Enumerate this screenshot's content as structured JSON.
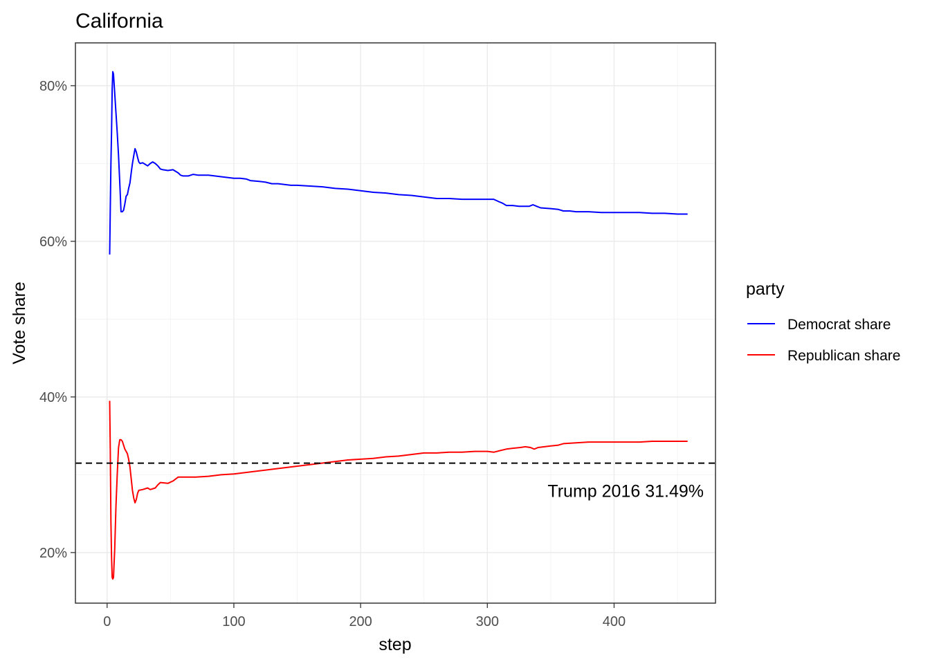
{
  "chart_data": {
    "type": "line",
    "title": "California",
    "xlabel": "step",
    "ylabel": "Vote share",
    "xlim": [
      -25,
      480
    ],
    "ylim": [
      0.135,
      0.855
    ],
    "x_ticks": [
      0,
      100,
      200,
      300,
      400
    ],
    "x_tick_labels": [
      "0",
      "100",
      "200",
      "300",
      "400"
    ],
    "y_ticks": [
      0.2,
      0.4,
      0.6,
      0.8
    ],
    "y_tick_labels": [
      "20%",
      "40%",
      "60%",
      "80%"
    ],
    "grid": true,
    "legend": {
      "title": "party",
      "position": "right"
    },
    "series": [
      {
        "name": "Democrat share",
        "color": "#0000ff",
        "points": [
          [
            2,
            0.583
          ],
          [
            2.5,
            0.643
          ],
          [
            3,
            0.7
          ],
          [
            3.5,
            0.74
          ],
          [
            4,
            0.795
          ],
          [
            4.5,
            0.818
          ],
          [
            5,
            0.815
          ],
          [
            6,
            0.79
          ],
          [
            7,
            0.765
          ],
          [
            8,
            0.74
          ],
          [
            9,
            0.71
          ],
          [
            10,
            0.675
          ],
          [
            11,
            0.638
          ],
          [
            12,
            0.638
          ],
          [
            13,
            0.64
          ],
          [
            14,
            0.648
          ],
          [
            15,
            0.658
          ],
          [
            16,
            0.66
          ],
          [
            17,
            0.668
          ],
          [
            18,
            0.675
          ],
          [
            19,
            0.688
          ],
          [
            20,
            0.7
          ],
          [
            21,
            0.71
          ],
          [
            22,
            0.719
          ],
          [
            23,
            0.715
          ],
          [
            24,
            0.708
          ],
          [
            25,
            0.702
          ],
          [
            26,
            0.7
          ],
          [
            28,
            0.701
          ],
          [
            30,
            0.699
          ],
          [
            32,
            0.697
          ],
          [
            34,
            0.7
          ],
          [
            36,
            0.702
          ],
          [
            38,
            0.7
          ],
          [
            40,
            0.697
          ],
          [
            42,
            0.693
          ],
          [
            44,
            0.692
          ],
          [
            48,
            0.691
          ],
          [
            52,
            0.692
          ],
          [
            54,
            0.69
          ],
          [
            56,
            0.688
          ],
          [
            58,
            0.685
          ],
          [
            60,
            0.684
          ],
          [
            64,
            0.684
          ],
          [
            68,
            0.686
          ],
          [
            72,
            0.685
          ],
          [
            80,
            0.685
          ],
          [
            85,
            0.684
          ],
          [
            90,
            0.683
          ],
          [
            95,
            0.682
          ],
          [
            100,
            0.681
          ],
          [
            105,
            0.681
          ],
          [
            110,
            0.68
          ],
          [
            113,
            0.678
          ],
          [
            120,
            0.677
          ],
          [
            125,
            0.676
          ],
          [
            130,
            0.674
          ],
          [
            135,
            0.674
          ],
          [
            140,
            0.673
          ],
          [
            145,
            0.672
          ],
          [
            150,
            0.672
          ],
          [
            160,
            0.671
          ],
          [
            170,
            0.67
          ],
          [
            175,
            0.669
          ],
          [
            180,
            0.668
          ],
          [
            190,
            0.667
          ],
          [
            200,
            0.665
          ],
          [
            210,
            0.663
          ],
          [
            220,
            0.662
          ],
          [
            230,
            0.66
          ],
          [
            240,
            0.659
          ],
          [
            250,
            0.657
          ],
          [
            260,
            0.655
          ],
          [
            270,
            0.655
          ],
          [
            280,
            0.654
          ],
          [
            290,
            0.654
          ],
          [
            300,
            0.654
          ],
          [
            305,
            0.654
          ],
          [
            309,
            0.651
          ],
          [
            312,
            0.649
          ],
          [
            315,
            0.646
          ],
          [
            320,
            0.646
          ],
          [
            325,
            0.645
          ],
          [
            330,
            0.645
          ],
          [
            333,
            0.645
          ],
          [
            336,
            0.647
          ],
          [
            339,
            0.645
          ],
          [
            342,
            0.643
          ],
          [
            350,
            0.642
          ],
          [
            356,
            0.641
          ],
          [
            360,
            0.639
          ],
          [
            365,
            0.639
          ],
          [
            370,
            0.638
          ],
          [
            380,
            0.638
          ],
          [
            390,
            0.637
          ],
          [
            400,
            0.637
          ],
          [
            410,
            0.637
          ],
          [
            420,
            0.637
          ],
          [
            430,
            0.636
          ],
          [
            440,
            0.636
          ],
          [
            450,
            0.635
          ],
          [
            458,
            0.635
          ]
        ]
      },
      {
        "name": "Republican share",
        "color": "#ff0000",
        "points": [
          [
            2,
            0.395
          ],
          [
            2.5,
            0.33
          ],
          [
            3,
            0.24
          ],
          [
            3.5,
            0.195
          ],
          [
            4,
            0.168
          ],
          [
            4.5,
            0.166
          ],
          [
            5,
            0.168
          ],
          [
            6,
            0.205
          ],
          [
            7,
            0.26
          ],
          [
            8,
            0.3
          ],
          [
            9,
            0.335
          ],
          [
            10,
            0.345
          ],
          [
            11,
            0.345
          ],
          [
            12,
            0.343
          ],
          [
            13,
            0.338
          ],
          [
            14,
            0.333
          ],
          [
            15,
            0.33
          ],
          [
            16,
            0.327
          ],
          [
            17,
            0.32
          ],
          [
            18,
            0.31
          ],
          [
            19,
            0.295
          ],
          [
            20,
            0.28
          ],
          [
            21,
            0.27
          ],
          [
            22,
            0.264
          ],
          [
            23,
            0.268
          ],
          [
            24,
            0.276
          ],
          [
            25,
            0.28
          ],
          [
            28,
            0.281
          ],
          [
            32,
            0.283
          ],
          [
            34,
            0.281
          ],
          [
            38,
            0.283
          ],
          [
            40,
            0.287
          ],
          [
            42,
            0.29
          ],
          [
            48,
            0.289
          ],
          [
            52,
            0.292
          ],
          [
            56,
            0.297
          ],
          [
            60,
            0.297
          ],
          [
            70,
            0.297
          ],
          [
            80,
            0.298
          ],
          [
            90,
            0.3
          ],
          [
            100,
            0.301
          ],
          [
            110,
            0.303
          ],
          [
            120,
            0.305
          ],
          [
            130,
            0.307
          ],
          [
            140,
            0.309
          ],
          [
            150,
            0.311
          ],
          [
            160,
            0.313
          ],
          [
            170,
            0.315
          ],
          [
            175,
            0.316
          ],
          [
            180,
            0.317
          ],
          [
            190,
            0.319
          ],
          [
            200,
            0.32
          ],
          [
            210,
            0.321
          ],
          [
            220,
            0.323
          ],
          [
            230,
            0.324
          ],
          [
            240,
            0.326
          ],
          [
            250,
            0.328
          ],
          [
            260,
            0.328
          ],
          [
            270,
            0.329
          ],
          [
            280,
            0.329
          ],
          [
            290,
            0.33
          ],
          [
            300,
            0.33
          ],
          [
            305,
            0.329
          ],
          [
            310,
            0.331
          ],
          [
            315,
            0.333
          ],
          [
            320,
            0.334
          ],
          [
            326,
            0.335
          ],
          [
            330,
            0.336
          ],
          [
            334,
            0.335
          ],
          [
            337,
            0.333
          ],
          [
            340,
            0.335
          ],
          [
            350,
            0.337
          ],
          [
            356,
            0.338
          ],
          [
            360,
            0.34
          ],
          [
            370,
            0.341
          ],
          [
            380,
            0.342
          ],
          [
            390,
            0.342
          ],
          [
            400,
            0.342
          ],
          [
            420,
            0.342
          ],
          [
            430,
            0.343
          ],
          [
            440,
            0.343
          ],
          [
            450,
            0.343
          ],
          [
            458,
            0.343
          ]
        ]
      }
    ],
    "reference_line": {
      "y": 0.3149,
      "style": "dashed",
      "color": "#000000",
      "label": "Trump 2016 31.49%"
    }
  }
}
